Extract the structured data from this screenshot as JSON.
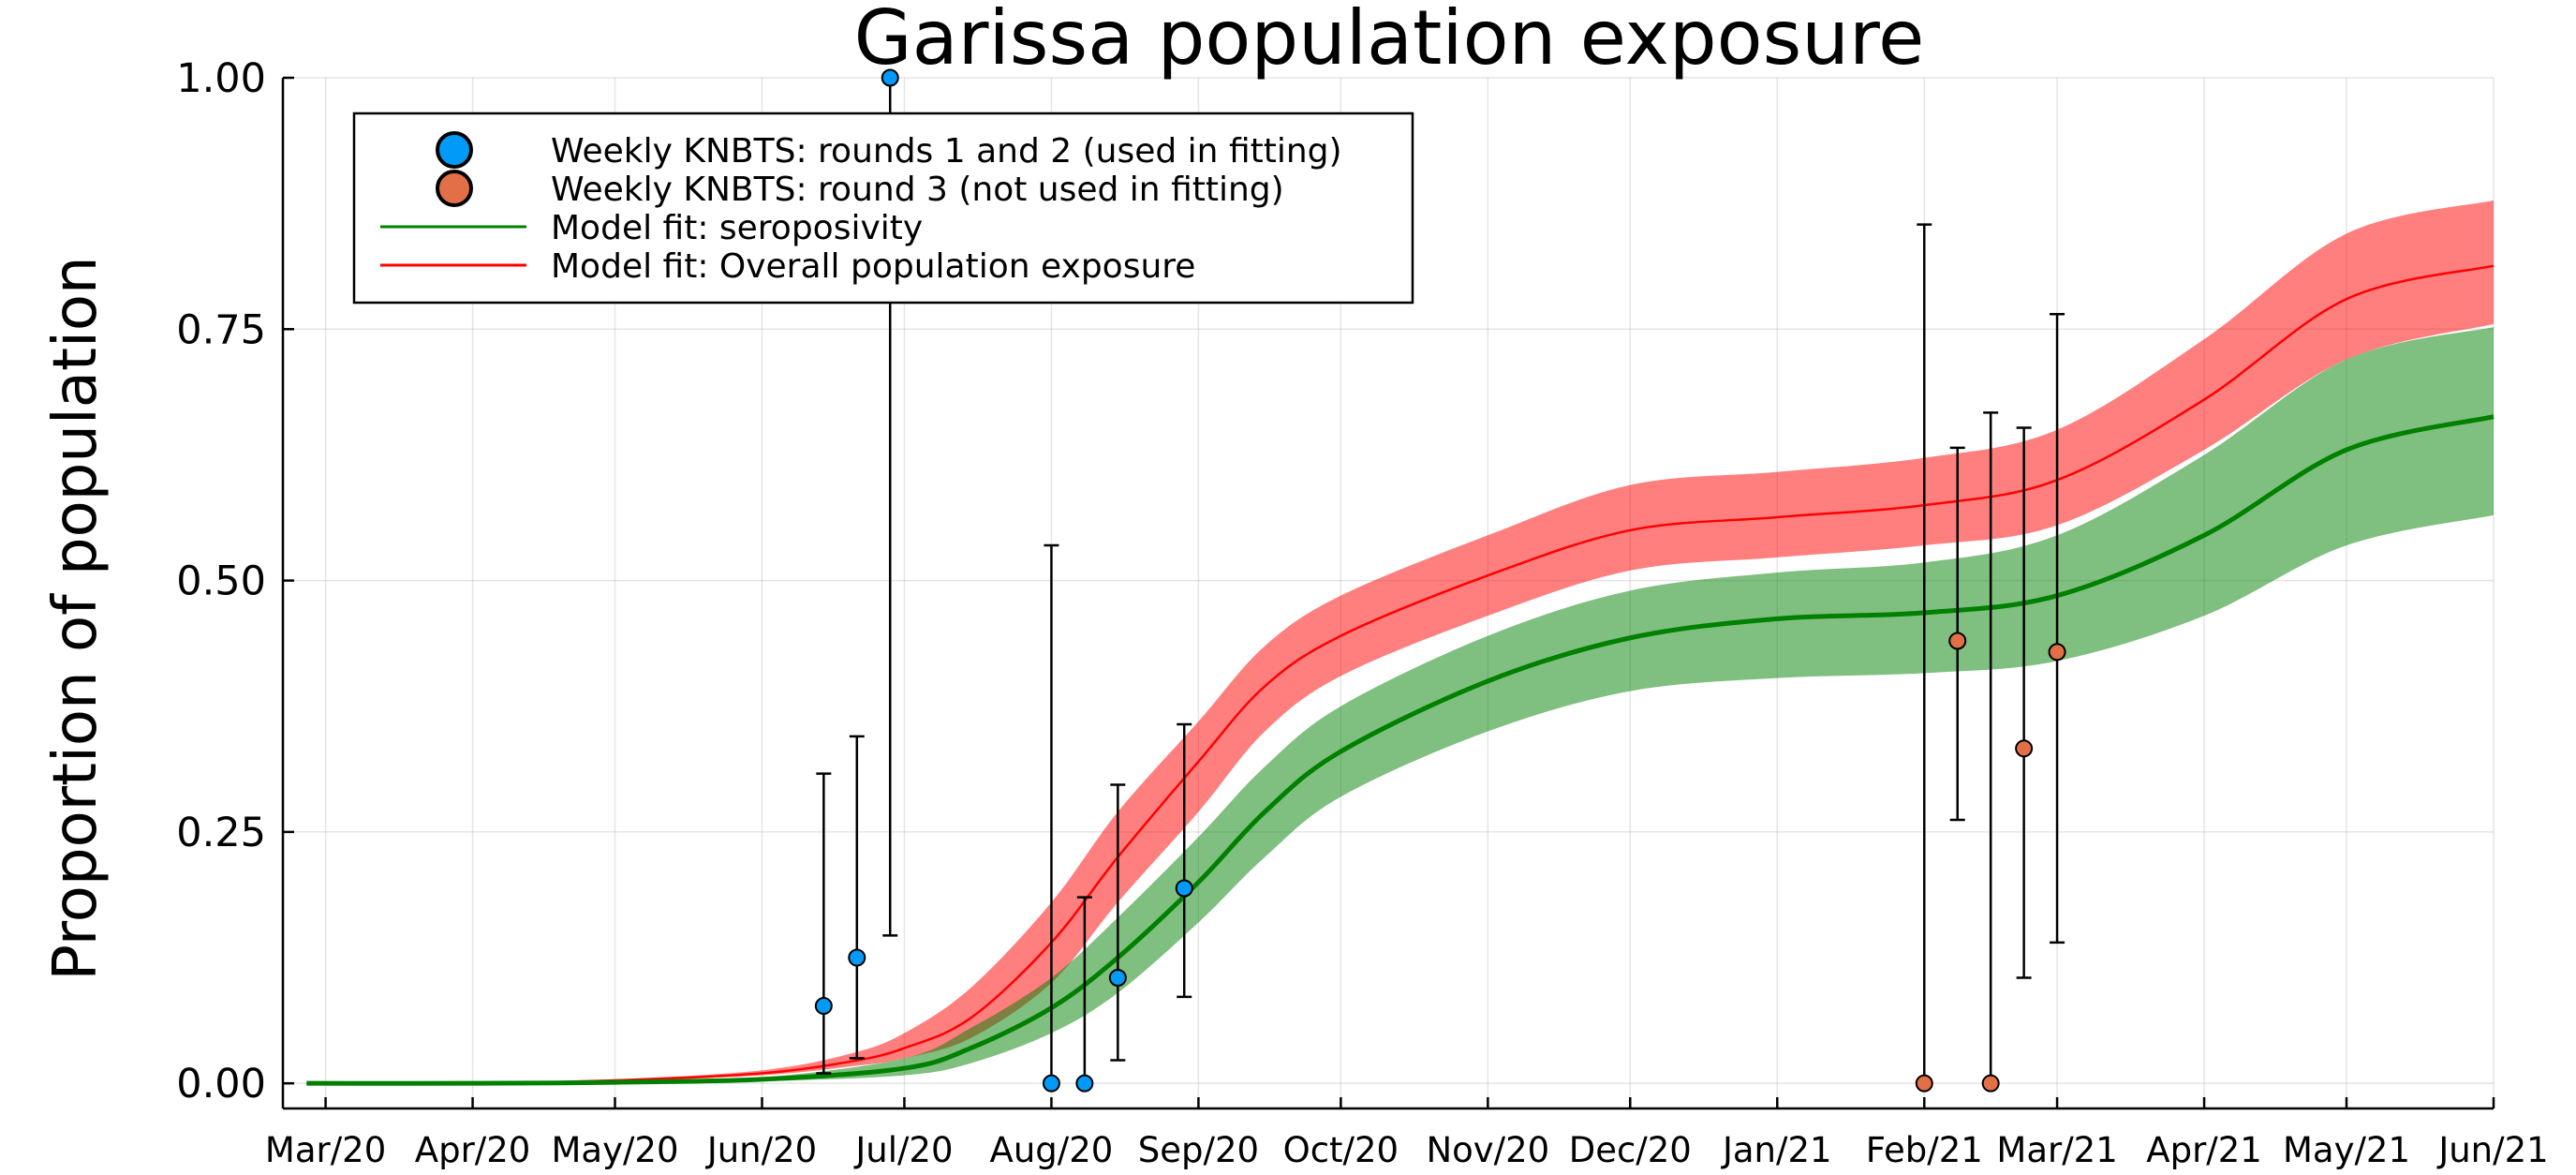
{
  "chart_data": {
    "type": "line",
    "title": "Garissa population exposure",
    "xlabel": "",
    "ylabel": "Proportion of population",
    "ylim": [
      -0.025,
      1.0
    ],
    "xlim": [
      "2020-02-21",
      "2021-06-01"
    ],
    "grid": true,
    "legend_position": "top-left",
    "x_ticks": [
      {
        "date": "2020-03-01",
        "label": "Mar/20"
      },
      {
        "date": "2020-04-01",
        "label": "Apr/20"
      },
      {
        "date": "2020-05-01",
        "label": "May/20"
      },
      {
        "date": "2020-06-01",
        "label": "Jun/20"
      },
      {
        "date": "2020-07-01",
        "label": "Jul/20"
      },
      {
        "date": "2020-08-01",
        "label": "Aug/20"
      },
      {
        "date": "2020-09-01",
        "label": "Sep/20"
      },
      {
        "date": "2020-10-01",
        "label": "Oct/20"
      },
      {
        "date": "2020-11-01",
        "label": "Nov/20"
      },
      {
        "date": "2020-12-01",
        "label": "Dec/20"
      },
      {
        "date": "2021-01-01",
        "label": "Jan/21"
      },
      {
        "date": "2021-02-01",
        "label": "Feb/21"
      },
      {
        "date": "2021-03-01",
        "label": "Mar/21"
      },
      {
        "date": "2021-04-01",
        "label": "Apr/21"
      },
      {
        "date": "2021-05-01",
        "label": "May/21"
      },
      {
        "date": "2021-06-01",
        "label": "Jun/21"
      }
    ],
    "y_ticks": [
      {
        "value": 0.0,
        "label": "0.00"
      },
      {
        "value": 0.25,
        "label": "0.25"
      },
      {
        "value": 0.5,
        "label": "0.50"
      },
      {
        "value": 0.75,
        "label": "0.75"
      },
      {
        "value": 1.0,
        "label": "1.00"
      }
    ],
    "legend": [
      {
        "label": "Weekly KNBTS: rounds 1 and 2 (used in fitting)",
        "kind": "marker",
        "color": "#009af9"
      },
      {
        "label": "Weekly KNBTS: round 3 (not used in fitting)",
        "kind": "marker",
        "color": "#e26f46"
      },
      {
        "label": "Model fit: seroposivity",
        "kind": "line",
        "color": "#008000"
      },
      {
        "label": "Model fit: Overall population exposure",
        "kind": "line",
        "color": "#ff0000"
      }
    ],
    "series": [
      {
        "name": "Model fit: Overall population exposure",
        "color": "#ff0000",
        "band_color": "#ff0000",
        "points": [
          {
            "x": "2020-02-26",
            "y": 0.0,
            "lo": 0.0,
            "hi": 0.0
          },
          {
            "x": "2020-04-01",
            "y": 0.0,
            "lo": 0.0,
            "hi": 0.001
          },
          {
            "x": "2020-05-01",
            "y": 0.003,
            "lo": 0.002,
            "hi": 0.004
          },
          {
            "x": "2020-06-01",
            "y": 0.01,
            "lo": 0.008,
            "hi": 0.013
          },
          {
            "x": "2020-06-20",
            "y": 0.022,
            "lo": 0.017,
            "hi": 0.03
          },
          {
            "x": "2020-07-01",
            "y": 0.035,
            "lo": 0.025,
            "hi": 0.05
          },
          {
            "x": "2020-07-15",
            "y": 0.065,
            "lo": 0.045,
            "hi": 0.095
          },
          {
            "x": "2020-08-01",
            "y": 0.14,
            "lo": 0.1,
            "hi": 0.18
          },
          {
            "x": "2020-08-15",
            "y": 0.225,
            "lo": 0.18,
            "hi": 0.27
          },
          {
            "x": "2020-09-01",
            "y": 0.32,
            "lo": 0.27,
            "hi": 0.36
          },
          {
            "x": "2020-09-15",
            "y": 0.395,
            "lo": 0.35,
            "hi": 0.435
          },
          {
            "x": "2020-10-01",
            "y": 0.445,
            "lo": 0.405,
            "hi": 0.485
          },
          {
            "x": "2020-11-01",
            "y": 0.505,
            "lo": 0.465,
            "hi": 0.545
          },
          {
            "x": "2020-12-01",
            "y": 0.55,
            "lo": 0.51,
            "hi": 0.595
          },
          {
            "x": "2021-01-01",
            "y": 0.563,
            "lo": 0.523,
            "hi": 0.608
          },
          {
            "x": "2021-02-01",
            "y": 0.575,
            "lo": 0.535,
            "hi": 0.622
          },
          {
            "x": "2021-03-01",
            "y": 0.6,
            "lo": 0.555,
            "hi": 0.65
          },
          {
            "x": "2021-04-01",
            "y": 0.68,
            "lo": 0.63,
            "hi": 0.74
          },
          {
            "x": "2021-05-01",
            "y": 0.78,
            "lo": 0.72,
            "hi": 0.845
          },
          {
            "x": "2021-06-01",
            "y": 0.813,
            "lo": 0.755,
            "hi": 0.878
          }
        ]
      },
      {
        "name": "Model fit: seroposivity",
        "color": "#008000",
        "band_color": "#008000",
        "points": [
          {
            "x": "2020-02-26",
            "y": 0.0,
            "lo": 0.0,
            "hi": 0.0
          },
          {
            "x": "2020-04-01",
            "y": 0.0,
            "lo": 0.0,
            "hi": 0.0
          },
          {
            "x": "2020-05-01",
            "y": 0.001,
            "lo": 0.0,
            "hi": 0.002
          },
          {
            "x": "2020-06-01",
            "y": 0.004,
            "lo": 0.002,
            "hi": 0.006
          },
          {
            "x": "2020-07-01",
            "y": 0.015,
            "lo": 0.008,
            "hi": 0.025
          },
          {
            "x": "2020-07-15",
            "y": 0.035,
            "lo": 0.02,
            "hi": 0.055
          },
          {
            "x": "2020-08-01",
            "y": 0.075,
            "lo": 0.05,
            "hi": 0.105
          },
          {
            "x": "2020-08-15",
            "y": 0.125,
            "lo": 0.09,
            "hi": 0.165
          },
          {
            "x": "2020-09-01",
            "y": 0.2,
            "lo": 0.16,
            "hi": 0.245
          },
          {
            "x": "2020-09-15",
            "y": 0.27,
            "lo": 0.225,
            "hi": 0.315
          },
          {
            "x": "2020-10-01",
            "y": 0.33,
            "lo": 0.285,
            "hi": 0.375
          },
          {
            "x": "2020-11-01",
            "y": 0.4,
            "lo": 0.35,
            "hi": 0.445
          },
          {
            "x": "2020-12-01",
            "y": 0.443,
            "lo": 0.39,
            "hi": 0.49
          },
          {
            "x": "2021-01-01",
            "y": 0.462,
            "lo": 0.403,
            "hi": 0.508
          },
          {
            "x": "2021-02-01",
            "y": 0.468,
            "lo": 0.408,
            "hi": 0.518
          },
          {
            "x": "2021-03-01",
            "y": 0.485,
            "lo": 0.42,
            "hi": 0.545
          },
          {
            "x": "2021-04-01",
            "y": 0.545,
            "lo": 0.465,
            "hi": 0.625
          },
          {
            "x": "2021-05-01",
            "y": 0.63,
            "lo": 0.535,
            "hi": 0.72
          },
          {
            "x": "2021-06-01",
            "y": 0.663,
            "lo": 0.565,
            "hi": 0.752
          }
        ]
      }
    ],
    "observations": [
      {
        "x": "2020-06-14",
        "y": 0.077,
        "lo": 0.01,
        "hi": 0.308,
        "round": "1-2",
        "color": "#009af9"
      },
      {
        "x": "2020-06-21",
        "y": 0.125,
        "lo": 0.025,
        "hi": 0.345,
        "round": "1-2",
        "color": "#009af9"
      },
      {
        "x": "2020-06-28",
        "y": 1.0,
        "lo": 0.147,
        "hi": 1.0,
        "round": "1-2",
        "color": "#009af9"
      },
      {
        "x": "2020-08-01",
        "y": 0.0,
        "lo": 0.0,
        "hi": 0.535,
        "round": "1-2",
        "color": "#009af9"
      },
      {
        "x": "2020-08-08",
        "y": 0.0,
        "lo": 0.0,
        "hi": 0.185,
        "round": "1-2",
        "color": "#009af9"
      },
      {
        "x": "2020-08-15",
        "y": 0.105,
        "lo": 0.023,
        "hi": 0.297,
        "round": "1-2",
        "color": "#009af9"
      },
      {
        "x": "2020-08-29",
        "y": 0.194,
        "lo": 0.086,
        "hi": 0.357,
        "round": "1-2",
        "color": "#009af9"
      },
      {
        "x": "2021-02-01",
        "y": 0.0,
        "lo": 0.0,
        "hi": 0.854,
        "round": "3",
        "color": "#e26f46"
      },
      {
        "x": "2021-02-08",
        "y": 0.44,
        "lo": 0.262,
        "hi": 0.632,
        "round": "3",
        "color": "#e26f46"
      },
      {
        "x": "2021-02-15",
        "y": 0.0,
        "lo": 0.0,
        "hi": 0.667,
        "round": "3",
        "color": "#e26f46"
      },
      {
        "x": "2021-02-22",
        "y": 0.333,
        "lo": 0.105,
        "hi": 0.652,
        "round": "3",
        "color": "#e26f46"
      },
      {
        "x": "2021-03-01",
        "y": 0.429,
        "lo": 0.14,
        "hi": 0.765,
        "round": "3",
        "color": "#e26f46"
      }
    ]
  }
}
